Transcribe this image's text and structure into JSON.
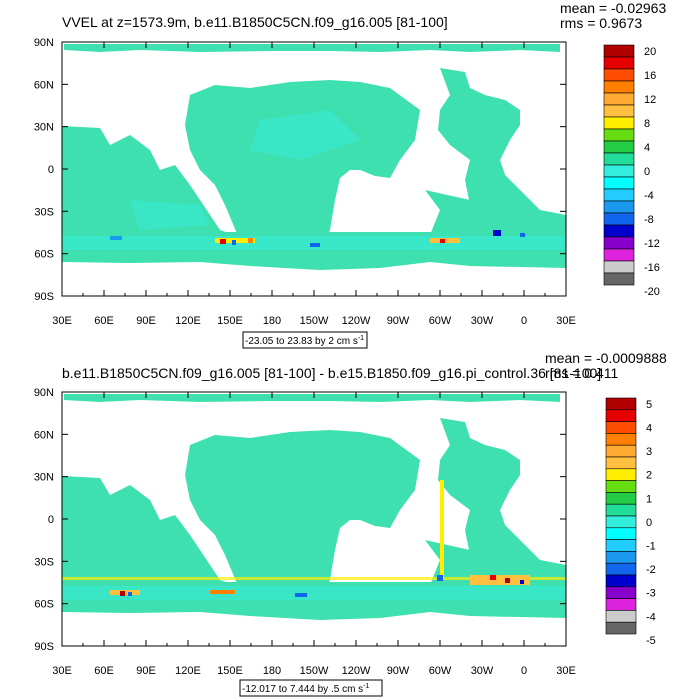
{
  "chart_data": [
    {
      "type": "heatmap",
      "title": "VVEL at z=1573.9m, b.e11.B1850C5CN.f09_g16.005 [81-100]",
      "stats": {
        "mean": "mean = -0.02963",
        "rms": "rms = 0.9673"
      },
      "range_label": "-23.05 to 23.83 by 2 cm s",
      "range_sup": "-1",
      "x_ticks": [
        "30E",
        "60E",
        "90E",
        "120E",
        "150E",
        "180",
        "150W",
        "120W",
        "90W",
        "60W",
        "30W",
        "0",
        "30E"
      ],
      "y_ticks": [
        "90N",
        "60N",
        "30N",
        "0",
        "30S",
        "60S",
        "90S"
      ],
      "colorbar_labels": [
        "20",
        "16",
        "12",
        "8",
        "4",
        "0",
        "-4",
        "-8",
        "-12",
        "-16",
        "-20"
      ],
      "colorbar_colors": [
        "#b00000",
        "#e60000",
        "#ff4d00",
        "#ff8000",
        "#ffaa33",
        "#ffc040",
        "#ffee00",
        "#66dd11",
        "#22cc44",
        "#22dd99",
        "#33eedd",
        "#00ffff",
        "#22ccff",
        "#1a99ee",
        "#1166ee",
        "#0000cc",
        "#8800cc",
        "#dd22dd",
        "#cccccc",
        "#666666"
      ]
    },
    {
      "type": "heatmap",
      "title": "b.e11.B1850C5CN.f09_g16.005 [81-100] - b.e15.B1850.f09_g16.pi_control.36 [81-100]",
      "stats": {
        "mean": "mean = -0.0009888",
        "rms": "rms = 0.411"
      },
      "range_label": "-12.017 to 7.444 by .5 cm s",
      "range_sup": "-1",
      "x_ticks": [
        "30E",
        "60E",
        "90E",
        "120E",
        "150E",
        "180",
        "150W",
        "120W",
        "90W",
        "60W",
        "30W",
        "0",
        "30E"
      ],
      "y_ticks": [
        "90N",
        "60N",
        "30N",
        "0",
        "30S",
        "60S",
        "90S"
      ],
      "colorbar_labels": [
        "5",
        "4",
        "3",
        "2",
        "1",
        "0",
        "-1",
        "-2",
        "-3",
        "-4",
        "-5"
      ],
      "colorbar_colors": [
        "#b00000",
        "#e60000",
        "#ff4d00",
        "#ff8000",
        "#ffaa33",
        "#ffc040",
        "#ffee00",
        "#66dd11",
        "#22cc44",
        "#22dd99",
        "#33eedd",
        "#00ffff",
        "#22ccff",
        "#1a99ee",
        "#1166ee",
        "#0000cc",
        "#8800cc",
        "#dd22dd",
        "#cccccc",
        "#666666"
      ]
    }
  ]
}
